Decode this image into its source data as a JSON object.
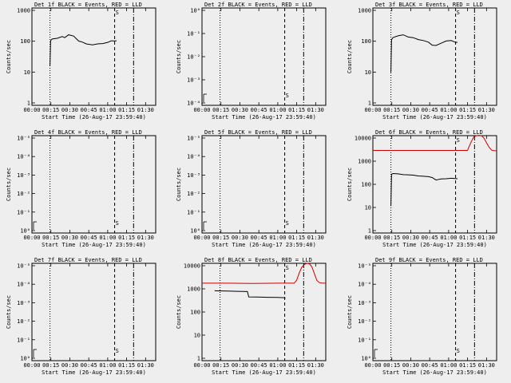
{
  "chart_data": [
    {
      "type": "line",
      "title": "Det 1f BLACK = Events, RED = LLD",
      "xlabel": "Start Time (26-Aug-17 23:59:40)",
      "ylabel": "Counts/sec",
      "scale": "log",
      "xticks": [
        "00:00",
        "00:15",
        "00:30",
        "00:45",
        "01:00",
        "01:15",
        "01:30"
      ],
      "yticks": [
        "1",
        "10",
        "100",
        "1000"
      ],
      "ylim": [
        1,
        1200
      ],
      "xlim": [
        0,
        98
      ],
      "marker_label": "S",
      "series": [
        {
          "color": "#000000",
          "x": [
            14.3,
            14.8,
            16,
            20,
            24,
            26,
            29,
            33,
            37,
            40,
            43,
            48,
            52,
            56,
            60,
            63,
            65,
            67
          ],
          "y": [
            18,
            112,
            125,
            132,
            150,
            138,
            170,
            155,
            108,
            100,
            88,
            82,
            88,
            90,
            98,
            110,
            108,
            110
          ]
        }
      ],
      "x_small": 1.5,
      "y_small": 1000
    },
    {
      "type": "line",
      "title": "Det 2f BLACK = Events, RED = LLD",
      "xlabel": "Start Time (26-Aug-17 23:59:40)",
      "ylabel": "Counts/sec",
      "scale": "log",
      "xticks": [
        "00:00",
        "00:15",
        "00:30",
        "00:45",
        "01:00",
        "01:15",
        "01:30"
      ],
      "yticks": [
        "10⁻⁴",
        "10⁻³",
        "10⁻²",
        "10⁻¹",
        "10⁰"
      ],
      "ylim": [
        0.7,
        1200
      ],
      "xlim": [
        0,
        98
      ],
      "marker_label": "S",
      "series": [],
      "x_small": 1.5,
      "y_small": 1.8
    },
    {
      "type": "line",
      "title": "Det 3f BLACK = Events, RED = LLD",
      "xlabel": "Start Time (26-Aug-17 23:59:40)",
      "ylabel": "Counts/sec",
      "scale": "log",
      "xticks": [
        "00:00",
        "00:15",
        "00:30",
        "00:45",
        "01:00",
        "01:15",
        "01:30"
      ],
      "yticks": [
        "1",
        "10",
        "100",
        "1000"
      ],
      "ylim": [
        1,
        1200
      ],
      "xlim": [
        0,
        98
      ],
      "marker_label": "S",
      "series": [
        {
          "color": "#000000",
          "x": [
            14.3,
            14.8,
            16,
            20,
            24,
            28,
            32,
            36,
            40,
            44,
            47,
            50,
            54,
            58,
            62,
            65,
            67
          ],
          "y": [
            11,
            120,
            140,
            158,
            170,
            145,
            138,
            120,
            112,
            100,
            80,
            78,
            92,
            108,
            112,
            100,
            98
          ]
        }
      ],
      "x_small": 1.5,
      "y_small": 1000
    },
    {
      "type": "line",
      "title": "Det 4f BLACK = Events, RED = LLD",
      "xlabel": "Start Time (26-Aug-17 23:59:40)",
      "ylabel": "Counts/sec",
      "scale": "log",
      "xticks": [
        "00:00",
        "00:15",
        "00:30",
        "00:45",
        "01:00",
        "01:15",
        "01:30"
      ],
      "yticks": [
        "10⁰",
        "10⁻¹",
        "10⁻²",
        "10⁻³",
        "10⁻⁴",
        "10⁻⁵"
      ],
      "ylim": [
        0.7,
        1200
      ],
      "xlim": [
        0,
        98
      ],
      "marker_label": "S",
      "series": [],
      "x_small": 1.5,
      "y_small": 1.8
    },
    {
      "type": "line",
      "title": "Det 5f BLACK = Events, RED = LLD",
      "xlabel": "Start Time (26-Aug-17 23:59:40)",
      "ylabel": "Counts/sec",
      "scale": "log",
      "xticks": [
        "00:00",
        "00:15",
        "00:30",
        "00:45",
        "01:00",
        "01:15",
        "01:30"
      ],
      "yticks": [
        "10⁰",
        "10⁻¹",
        "10⁻²",
        "10⁻³",
        "10⁻⁴",
        "10⁻⁵"
      ],
      "ylim": [
        0.7,
        1200
      ],
      "xlim": [
        0,
        98
      ],
      "marker_label": "S",
      "series": [],
      "x_small": 1.5,
      "y_small": 1.8
    },
    {
      "type": "line",
      "title": "Det 6f BLACK = Events, RED = LLD",
      "xlabel": "Start Time (26-Aug-17 23:59:40)",
      "ylabel": "Counts/sec",
      "scale": "log",
      "xticks": [
        "00:00",
        "00:15",
        "00:30",
        "00:45",
        "01:00",
        "01:15",
        "01:30"
      ],
      "yticks": [
        "1",
        "10",
        "100",
        "1000",
        "10000"
      ],
      "ylim": [
        1,
        14000
      ],
      "xlim": [
        0,
        98
      ],
      "marker_label": "S",
      "series": [
        {
          "color": "#cc0000",
          "x": [
            0,
            20,
            40,
            60,
            75,
            76,
            78,
            80,
            82,
            84,
            86,
            88,
            90,
            92,
            94,
            96,
            98
          ],
          "y": [
            3300,
            3300,
            3300,
            3300,
            3300,
            4500,
            8000,
            12500,
            14000,
            14500,
            14000,
            11000,
            7000,
            4500,
            3400,
            3200,
            3200
          ]
        },
        {
          "color": "#000000",
          "x": [
            14.3,
            14.8,
            16,
            20,
            24,
            28,
            32,
            36,
            40,
            44,
            47,
            50,
            54,
            58,
            62,
            65,
            67
          ],
          "y": [
            14,
            320,
            340,
            330,
            305,
            300,
            290,
            270,
            260,
            250,
            230,
            180,
            200,
            205,
            215,
            210,
            205
          ]
        }
      ],
      "x_small": 1.5,
      "y_small": 1000
    },
    {
      "type": "line",
      "title": "Det 7f BLACK = Events, RED = LLD",
      "xlabel": "Start Time (26-Aug-17 23:59:40)",
      "ylabel": "Counts/sec",
      "scale": "log",
      "xticks": [
        "00:00",
        "00:15",
        "00:30",
        "00:45",
        "01:00",
        "01:15",
        "01:30"
      ],
      "yticks": [
        "10⁰",
        "10⁻¹",
        "10⁻²",
        "10⁻³",
        "10⁻⁴",
        "10⁻⁵"
      ],
      "ylim": [
        0.7,
        1200
      ],
      "xlim": [
        0,
        98
      ],
      "marker_label": "S",
      "series": [],
      "x_small": 1.5,
      "y_small": 1.8
    },
    {
      "type": "line",
      "title": "Det 8f BLACK = Events, RED = LLD",
      "xlabel": "Start Time (26-Aug-17 23:59:40)",
      "ylabel": "Counts/sec",
      "scale": "log",
      "xticks": [
        "00:00",
        "00:15",
        "00:30",
        "00:45",
        "01:00",
        "01:15",
        "01:30"
      ],
      "yticks": [
        "1",
        "10",
        "100",
        "1000",
        "10000"
      ],
      "ylim": [
        1,
        14000
      ],
      "xlim": [
        0,
        98
      ],
      "marker_label": "S",
      "series": [
        {
          "color": "#cc0000",
          "x": [
            0,
            20,
            40,
            60,
            73,
            75,
            77,
            79,
            81,
            83,
            85,
            87,
            89,
            91,
            93,
            95,
            98
          ],
          "y": [
            2000,
            2000,
            1950,
            2000,
            2000,
            2700,
            5500,
            9500,
            12500,
            14000,
            13500,
            10000,
            5000,
            2600,
            2100,
            2000,
            2000
          ]
        },
        {
          "color": "#000000",
          "x": [
            10,
            12,
            20,
            28,
            36,
            37,
            44,
            52,
            60,
            65,
            66
          ],
          "y": [
            950,
            940,
            920,
            900,
            880,
            520,
            510,
            500,
            490,
            480,
            450
          ]
        }
      ],
      "x_small": null,
      "y_small": null
    },
    {
      "type": "line",
      "title": "Det 9f BLACK = Events, RED = LLD",
      "xlabel": "Start Time (26-Aug-17 23:59:40)",
      "ylabel": "Counts/sec",
      "scale": "log",
      "xticks": [
        "00:00",
        "00:15",
        "00:30",
        "00:45",
        "01:00",
        "01:15",
        "01:30"
      ],
      "yticks": [
        "10⁰",
        "10⁻¹",
        "10⁻²",
        "10⁻³",
        "10⁻⁴",
        "10⁻⁵"
      ],
      "ylim": [
        0.7,
        1200
      ],
      "xlim": [
        0,
        98
      ],
      "marker_label": "S",
      "series": [],
      "x_small": 1.5,
      "y_small": 1.8
    }
  ],
  "vlines": {
    "dotted": 14.3,
    "dashed": 65.5,
    "dashdot": 80.5
  }
}
